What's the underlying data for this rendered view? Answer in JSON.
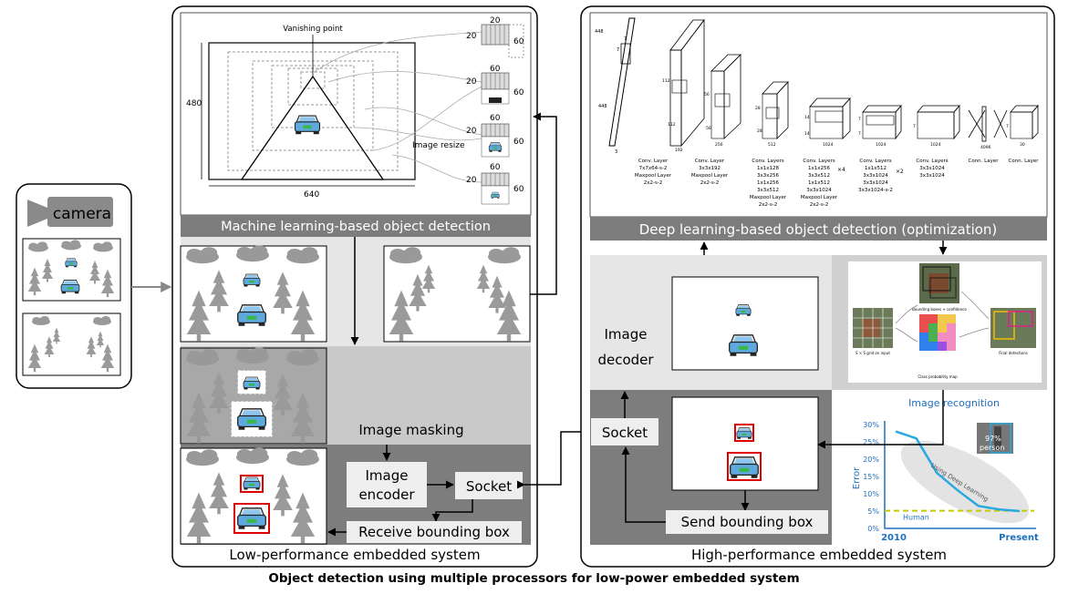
{
  "camera": {
    "label": "camera"
  },
  "ml_panel": {
    "title": "Machine learning-based object detection",
    "vanishing_point": "Vanishing point",
    "image_resize": "Image resize",
    "dim_height": "480",
    "dim_width": "640",
    "patch_w": "20",
    "patch_h": "60",
    "patch_sizes": [
      "60",
      "60",
      "60"
    ]
  },
  "low_panel": {
    "title": "Low-performance embedded system",
    "image_masking": "Image masking",
    "image_encoder_line1": "Image",
    "image_encoder_line2": "encoder",
    "socket": "Socket",
    "receive_bbox": "Receive bounding box"
  },
  "dl_panel": {
    "title": "Deep learning-based object detection (optimization)",
    "top_dims": [
      "448",
      "7",
      "7",
      "448",
      "3"
    ],
    "side_dims": [
      "112",
      "112",
      "3",
      "3",
      "56",
      "56",
      "3",
      "3",
      "28",
      "28",
      "3",
      "3",
      "14",
      "14",
      "3",
      "3",
      "7",
      "7",
      "3",
      "3",
      "7",
      "7",
      "7",
      "7"
    ],
    "channel_labels": [
      "192",
      "256",
      "512",
      "1024",
      "1024",
      "1024",
      "4096",
      "30"
    ],
    "layer_texts": [
      [
        "Conv. Layer",
        "7x7x64-s-2",
        "Maxpool Layer",
        "2x2-s-2"
      ],
      [
        "Conv. Layer",
        "3x3x192",
        "Maxpool Layer",
        "2x2-s-2"
      ],
      [
        "Conv. Layers",
        "1x1x128",
        "3x3x256",
        "1x1x256",
        "3x3x512",
        "Maxpool Layer",
        "2x2-s-2"
      ],
      [
        "Conv. Layers",
        "1x1x256",
        "3x3x512",
        "1x1x512",
        "3x3x1024",
        "Maxpool Layer",
        "2x2-s-2"
      ],
      [
        "Conv. Layers",
        "1x1x512",
        "3x3x1024",
        "3x3x1024",
        "3x3x1024-s-2"
      ],
      [
        "Conv. Layers",
        "3x3x1024",
        "3x3x1024"
      ],
      [
        "Conn. Layer"
      ],
      [
        "Conn. Layer"
      ]
    ],
    "repeat_labels": [
      "×4",
      "×2"
    ]
  },
  "high_panel": {
    "title": "High-performance embedded system",
    "image_decoder_line1": "Image",
    "image_decoder_line2": "decoder",
    "socket": "Socket",
    "send_bbox": "Send bounding box"
  },
  "yolo": {
    "grid_label": "S × S grid on input",
    "bbox_label": "Bounding boxes + confidence",
    "final_label": "Final detections",
    "class_map_label": "Class probability map"
  },
  "recognition_chart": {
    "title": "Image recognition",
    "ylabel": "Error",
    "yticks": [
      "30%",
      "25%",
      "20%",
      "15%",
      "10%",
      "5%",
      "0%"
    ],
    "xtick_start": "2010",
    "xtick_end": "Present",
    "trend_label": "Using Deep Learning",
    "human_label": "Human",
    "photo_label_pct": "97%",
    "photo_label_word": "person",
    "colors": {
      "curve": "#29a9e1",
      "human": "#c8c800",
      "ellipse": "#e3e3e3",
      "text": "#1f6fbf"
    }
  },
  "chart_data": {
    "type": "line",
    "title": "Image recognition",
    "xlabel": "",
    "ylabel": "Error",
    "x": [
      "2010",
      "",
      "",
      "",
      "",
      "",
      "Present"
    ],
    "series": [
      {
        "name": "Using Deep Learning",
        "values": [
          28,
          26,
          16,
          11,
          6.5,
          5.5,
          5
        ]
      },
      {
        "name": "Human",
        "values": [
          5.1,
          5.1,
          5.1,
          5.1,
          5.1,
          5.1,
          5.1
        ]
      }
    ],
    "ylim": [
      0,
      30
    ]
  },
  "caption": "Object detection using multiple processors for low-power embedded system"
}
